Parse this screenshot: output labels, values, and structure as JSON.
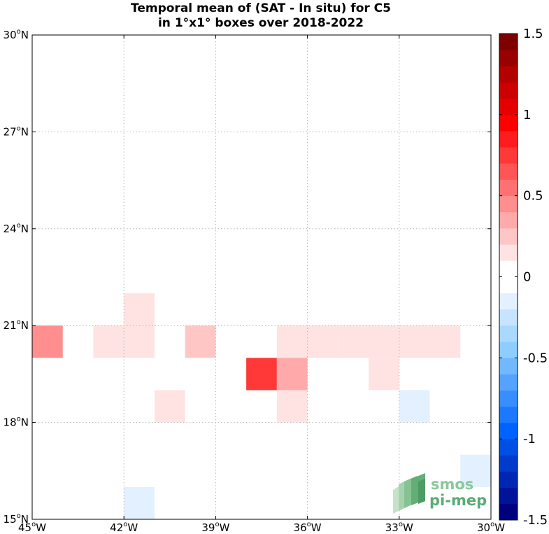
{
  "chart_data": {
    "type": "heatmap",
    "title": [
      "Temporal mean of (SAT - In situ) for C5",
      "in 1°x1° boxes over 2018-2022"
    ],
    "xlim": [
      -45,
      -30
    ],
    "ylim": [
      15,
      30
    ],
    "grid": true,
    "x_ticks": [
      {
        "value": -45,
        "label": "45",
        "hemi": "W"
      },
      {
        "value": -42,
        "label": "42",
        "hemi": "W"
      },
      {
        "value": -39,
        "label": "39",
        "hemi": "W"
      },
      {
        "value": -36,
        "label": "36",
        "hemi": "W"
      },
      {
        "value": -33,
        "label": "33",
        "hemi": "W"
      },
      {
        "value": -30,
        "label": "30",
        "hemi": "W"
      }
    ],
    "y_ticks": [
      {
        "value": 15,
        "label": "15",
        "hemi": "N"
      },
      {
        "value": 18,
        "label": "18",
        "hemi": "N"
      },
      {
        "value": 21,
        "label": "21",
        "hemi": "N"
      },
      {
        "value": 24,
        "label": "24",
        "hemi": "N"
      },
      {
        "value": 27,
        "label": "27",
        "hemi": "N"
      },
      {
        "value": 30,
        "label": "30",
        "hemi": "N"
      }
    ],
    "colorbar": {
      "min": -1.5,
      "max": 1.5,
      "levels": 30,
      "tick_values": [
        1.5,
        1,
        0.5,
        0,
        -0.5,
        -1,
        -1.5
      ],
      "tick_labels": [
        "1.5",
        "1",
        "0.5",
        "0",
        "-0.5",
        "-1",
        "-1.5"
      ],
      "colors": [
        "#00007f",
        "#001399",
        "#0027b3",
        "#003bcc",
        "#004fe5",
        "#0062ff",
        "#1c78ff",
        "#388dff",
        "#55a3ff",
        "#71b8ff",
        "#8ecdff",
        "#aad9ff",
        "#c6e4ff",
        "#e3f0ff",
        "#ffffff",
        "#ffffff",
        "#ffe3e3",
        "#ffc6c6",
        "#ffaaaa",
        "#ff8e8e",
        "#ff7171",
        "#ff5555",
        "#ff3838",
        "#ff1c1c",
        "#ff0000",
        "#e50000",
        "#cc0000",
        "#b30000",
        "#990000",
        "#7f0000"
      ]
    },
    "cells": [
      {
        "lon": -45,
        "lat": 20,
        "value": 0.4
      },
      {
        "lon": -43,
        "lat": 20,
        "value": 0.15
      },
      {
        "lon": -42,
        "lat": 20,
        "value": 0.15
      },
      {
        "lon": -42,
        "lat": 21,
        "value": 0.15
      },
      {
        "lon": -40,
        "lat": 20,
        "value": 0.25
      },
      {
        "lon": -37,
        "lat": 20,
        "value": 0.15
      },
      {
        "lon": -36,
        "lat": 20,
        "value": 0.15
      },
      {
        "lon": -35,
        "lat": 20,
        "value": 0.15
      },
      {
        "lon": -34,
        "lat": 20,
        "value": 0.15
      },
      {
        "lon": -33,
        "lat": 20,
        "value": 0.15
      },
      {
        "lon": -32,
        "lat": 20,
        "value": 0.15
      },
      {
        "lon": -38,
        "lat": 19,
        "value": 0.7
      },
      {
        "lon": -37,
        "lat": 19,
        "value": 0.3
      },
      {
        "lon": -34,
        "lat": 19,
        "value": 0.15
      },
      {
        "lon": -41,
        "lat": 18,
        "value": 0.15
      },
      {
        "lon": -37,
        "lat": 18,
        "value": 0.15
      },
      {
        "lon": -33,
        "lat": 18,
        "value": -0.15
      },
      {
        "lon": -31,
        "lat": 16,
        "value": -0.15
      },
      {
        "lon": -42,
        "lat": 15,
        "value": -0.15
      }
    ]
  },
  "logo": {
    "line1": "smos",
    "line2": "pi-mep"
  }
}
